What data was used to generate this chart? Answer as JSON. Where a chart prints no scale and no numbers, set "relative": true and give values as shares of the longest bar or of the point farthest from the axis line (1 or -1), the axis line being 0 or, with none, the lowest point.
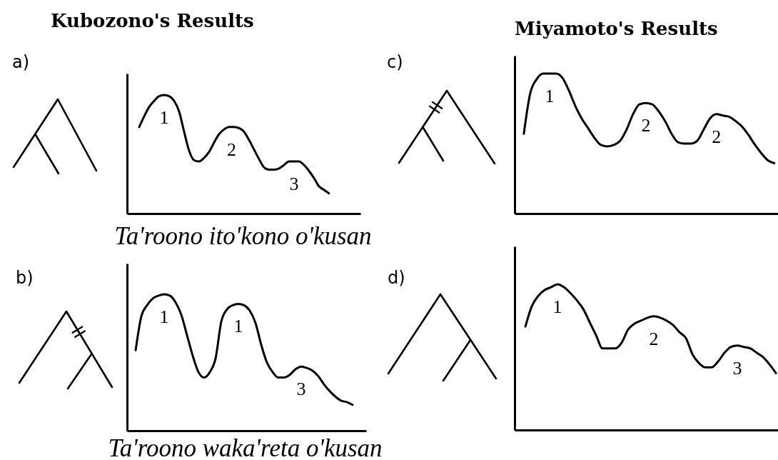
{
  "chart_data": [
    {
      "type": "other",
      "title": "a)"
    },
    {
      "type": "line",
      "title": "Kubozono's Results",
      "xlabel": "Ta'roono ito'kono o'kusan",
      "relative": true,
      "color": "#000000",
      "categories": [
        null,
        null,
        null,
        null,
        null,
        null,
        null,
        null,
        null,
        null,
        null,
        null,
        null,
        null,
        null,
        null,
        null,
        null,
        null,
        null,
        null,
        null,
        null,
        null,
        null,
        null,
        null,
        null,
        null,
        null,
        null,
        null,
        null,
        null,
        null,
        null,
        null,
        null,
        null
      ],
      "values": [
        0.73,
        0.82,
        0.9,
        0.95,
        0.99,
        1,
        0.99,
        0.95,
        0.86,
        0.69,
        0.53,
        0.45,
        0.44,
        0.47,
        0.52,
        0.6,
        0.67,
        0.71,
        0.73,
        0.73,
        0.72,
        0.69,
        0.62,
        0.54,
        0.46,
        0.39,
        0.37,
        0.37,
        0.38,
        0.41,
        0.44,
        0.44,
        0.44,
        0.41,
        0.36,
        0.3,
        0.23,
        0.2,
        0.17
      ],
      "annotations": [
        {
          "text": "1",
          "y": 1
        },
        {
          "text": "2",
          "y": 0.73
        },
        {
          "text": "3",
          "y": 0.44
        }
      ]
    },
    {
      "type": "line",
      "subtitle": "b)",
      "xlabel": "Ta'roono waka'reta o'kusan",
      "relative": true,
      "color": "#000000",
      "categories": [
        null,
        null,
        null,
        null,
        null,
        null,
        null,
        null,
        null,
        null,
        null,
        null,
        null,
        null,
        null,
        null,
        null,
        null,
        null,
        null,
        null,
        null,
        null,
        null,
        null,
        null,
        null,
        null,
        null,
        null,
        null,
        null,
        null,
        null,
        null,
        null,
        null,
        null,
        null
      ],
      "values": [
        0.59,
        0.84,
        0.92,
        0.97,
        0.99,
        1,
        0.99,
        0.94,
        0.85,
        0.7,
        0.55,
        0.43,
        0.39,
        0.43,
        0.53,
        0.8,
        0.89,
        0.92,
        0.93,
        0.92,
        0.88,
        0.79,
        0.63,
        0.5,
        0.43,
        0.39,
        0.39,
        0.41,
        0.45,
        0.47,
        0.46,
        0.44,
        0.4,
        0.34,
        0.29,
        0.25,
        0.22,
        0.21,
        0.19
      ],
      "annotations": [
        {
          "text": "1",
          "y": 1
        },
        {
          "text": "1",
          "y": 0.93
        },
        {
          "text": "3",
          "y": 0.47
        }
      ]
    },
    {
      "type": "other",
      "title": "c)"
    },
    {
      "type": "line",
      "title": "Miyamoto's Results",
      "relative": true,
      "color": "#000000",
      "categories": [
        null,
        null,
        null,
        null,
        null,
        null,
        null,
        null,
        null,
        null,
        null,
        null,
        null,
        null,
        null,
        null,
        null,
        null,
        null,
        null,
        null,
        null,
        null,
        null,
        null,
        null,
        null,
        null,
        null,
        null,
        null,
        null,
        null,
        null,
        null,
        null,
        null,
        null,
        null,
        null
      ],
      "values": [
        0.57,
        0.86,
        0.96,
        1,
        1,
        1,
        0.97,
        0.88,
        0.77,
        0.68,
        0.61,
        0.54,
        0.49,
        0.48,
        0.49,
        0.52,
        0.6,
        0.71,
        0.78,
        0.79,
        0.78,
        0.73,
        0.66,
        0.57,
        0.51,
        0.5,
        0.5,
        0.52,
        0.6,
        0.68,
        0.71,
        0.7,
        0.69,
        0.66,
        0.62,
        0.56,
        0.49,
        0.43,
        0.38,
        0.36
      ],
      "annotations": [
        {
          "text": "1",
          "y": 1
        },
        {
          "text": "2",
          "y": 0.79
        },
        {
          "text": "2",
          "y": 0.71
        }
      ]
    },
    {
      "type": "other",
      "title": "d)"
    },
    {
      "type": "line",
      "relative": true,
      "color": "#000000",
      "categories": [
        null,
        null,
        null,
        null,
        null,
        null,
        null,
        null,
        null,
        null,
        null,
        null,
        null,
        null,
        null,
        null,
        null,
        null,
        null,
        null,
        null,
        null,
        null,
        null,
        null,
        null,
        null,
        null,
        null,
        null,
        null,
        null,
        null,
        null,
        null,
        null,
        null,
        null,
        null,
        null
      ],
      "values": [
        0.71,
        0.85,
        0.92,
        0.96,
        0.98,
        1,
        0.98,
        0.94,
        0.89,
        0.83,
        0.74,
        0.65,
        0.56,
        0.56,
        0.56,
        0.6,
        0.69,
        0.73,
        0.75,
        0.77,
        0.78,
        0.77,
        0.75,
        0.72,
        0.67,
        0.63,
        0.52,
        0.46,
        0.43,
        0.43,
        0.47,
        0.53,
        0.57,
        0.58,
        0.57,
        0.56,
        0.53,
        0.5,
        0.45,
        0.39
      ],
      "annotations": [
        {
          "text": "1",
          "y": 1
        },
        {
          "text": "2",
          "y": 0.78
        },
        {
          "text": "3",
          "y": 0.58
        }
      ]
    }
  ]
}
